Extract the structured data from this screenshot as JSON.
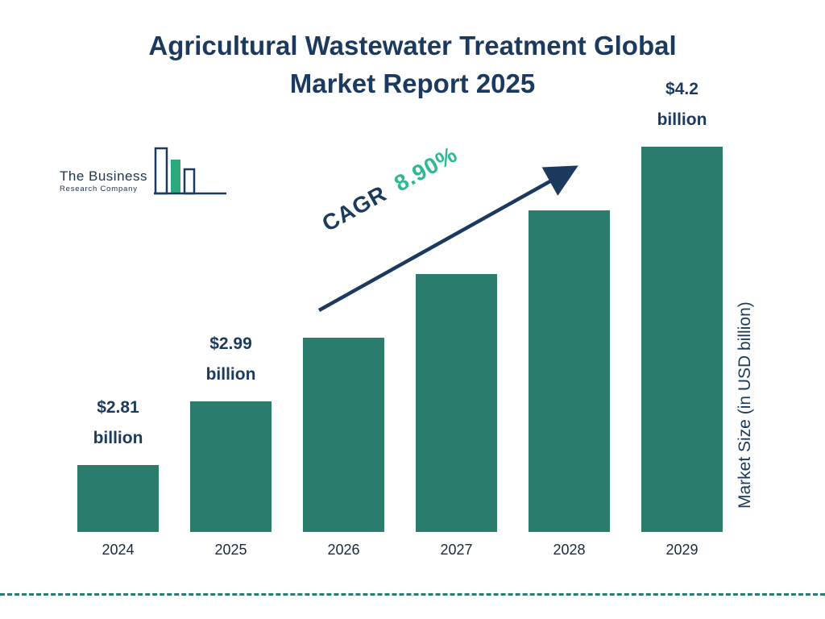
{
  "header": {
    "title_line1": "Agricultural Wastewater Treatment Global",
    "title_line2": "Market Report 2025"
  },
  "logo": {
    "line1": "The Business",
    "line2": "Research Company"
  },
  "annotations": {
    "cagr_label": "CAGR",
    "cagr_value": "8.90%"
  },
  "chart_data": {
    "type": "bar",
    "title": "Agricultural Wastewater Treatment Global Market Report 2025",
    "categories": [
      "2024",
      "2025",
      "2026",
      "2027",
      "2028",
      "2029"
    ],
    "values": [
      2.81,
      2.99,
      3.26,
      3.55,
      3.86,
      4.2
    ],
    "value_labels": [
      {
        "line1": "$2.81",
        "line2": "billion"
      },
      {
        "line1": "$2.99",
        "line2": "billion"
      },
      null,
      null,
      null,
      {
        "line1": "$4.2",
        "line2": "billion"
      }
    ],
    "xlabel": "",
    "ylabel": "Market Size (in USD billion)",
    "cagr": "8.90%",
    "legend": "none",
    "grid": false,
    "colors": {
      "bar": "#2a7d6d",
      "title": "#1b3a5e",
      "cagr_label": "#1b3a5e",
      "cagr_value": "#2eb893",
      "arrow": "#1b3a5e",
      "logo_green": "#2aa87e",
      "divider": "#2a7d6d"
    }
  }
}
